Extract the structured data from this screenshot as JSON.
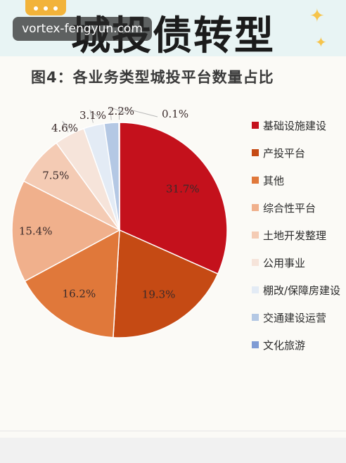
{
  "banner": {
    "headline": "城投债转型",
    "watermark": "vortex-fengyun.com"
  },
  "chart_data": {
    "type": "pie",
    "title": "图4：各业务类型城投平台数量占比",
    "categories": [
      "基础设施建设",
      "产投平台",
      "其他",
      "综合性平台",
      "土地开发整理",
      "公用事业",
      "棚改/保障房建设",
      "交通建设运营",
      "文化旅游"
    ],
    "values": [
      31.7,
      19.3,
      16.2,
      15.4,
      7.5,
      4.6,
      3.1,
      2.2,
      0.1
    ],
    "labels": [
      "31.7%",
      "19.3%",
      "16.2%",
      "15.4%",
      "7.5%",
      "4.6%",
      "3.1%",
      "2.2%",
      "0.1%"
    ],
    "colors": [
      "#c4111c",
      "#c54a14",
      "#e0783a",
      "#f0b08c",
      "#f4cbb4",
      "#f6e4da",
      "#e3ebf5",
      "#b4c8e4",
      "#7f9bd4"
    ],
    "legend_position": "right",
    "legend": {
      "labels": [
        "基础设施建设",
        "产投平台",
        "其他",
        "综合性平台",
        "土地开发整理",
        "公用事业",
        "棚改/保障房建设",
        "交通建设运营",
        "文化旅游"
      ]
    }
  }
}
